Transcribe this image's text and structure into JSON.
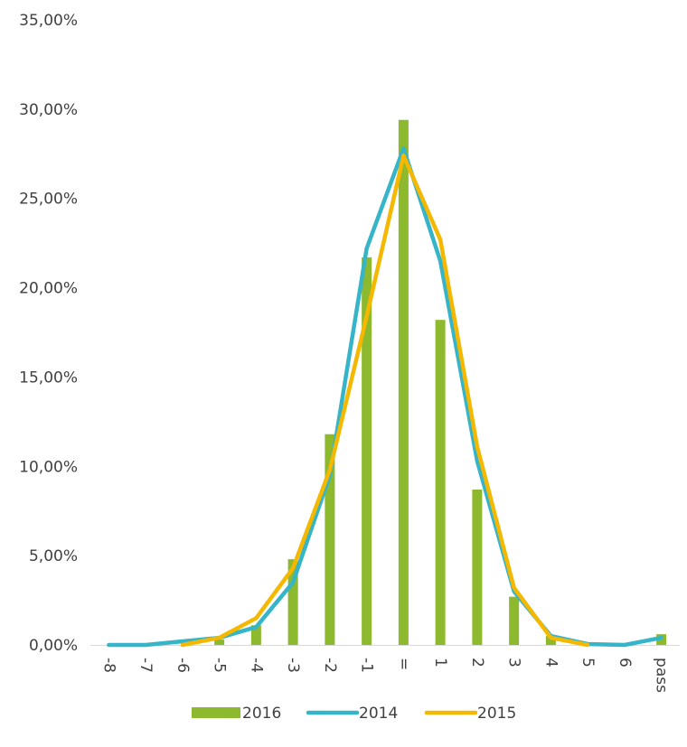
{
  "chart_data": {
    "type": "bar",
    "categories": [
      "-8",
      "-7",
      "-6",
      "-5",
      "-4",
      "-3",
      "-2",
      "-1",
      "=",
      "1",
      "2",
      "3",
      "4",
      "5",
      "6",
      "pass"
    ],
    "ylim": [
      0,
      35
    ],
    "ytick_values": [
      0,
      5,
      10,
      15,
      20,
      25,
      30,
      35
    ],
    "ytick_labels": [
      "0,00%",
      "5,00%",
      "10,00%",
      "15,00%",
      "20,00%",
      "25,00%",
      "30,00%",
      "35,00%"
    ],
    "grid": false,
    "legend_position": "bottom",
    "series": [
      {
        "name": "2016",
        "type": "bar",
        "color": "#8DB92E",
        "values": [
          0,
          0,
          0,
          0.3,
          1.1,
          4.8,
          11.8,
          21.7,
          29.4,
          18.2,
          8.7,
          2.7,
          0.5,
          0,
          0,
          0.6
        ]
      },
      {
        "name": "2014",
        "type": "line",
        "color": "#36B4C8",
        "values": [
          0,
          0,
          0.2,
          0.4,
          1.0,
          3.5,
          9.5,
          22.2,
          27.8,
          21.5,
          10.3,
          3.0,
          0.5,
          0.05,
          0,
          0.4
        ]
      },
      {
        "name": "2015",
        "type": "line",
        "color": "#F5B800",
        "values": [
          null,
          null,
          0,
          0.4,
          1.5,
          4.3,
          9.8,
          18.4,
          27.4,
          22.7,
          11.1,
          3.2,
          0.4,
          0,
          null,
          null
        ]
      }
    ]
  }
}
